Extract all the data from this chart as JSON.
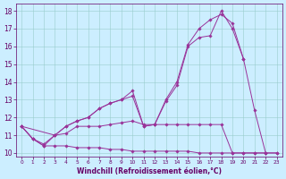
{
  "x": [
    0,
    1,
    2,
    3,
    4,
    5,
    6,
    7,
    8,
    9,
    10,
    11,
    12,
    13,
    14,
    15,
    16,
    17,
    18,
    19,
    20,
    21,
    22,
    23
  ],
  "line1": [
    11.5,
    10.8,
    10.4,
    10.4,
    10.4,
    10.3,
    10.3,
    10.3,
    10.2,
    10.2,
    10.1,
    10.1,
    10.1,
    10.1,
    10.1,
    10.1,
    10.0,
    10.0,
    10.0,
    10.0,
    10.0,
    10.0,
    10.0,
    10.0
  ],
  "line2": [
    11.5,
    10.8,
    10.4,
    11.0,
    11.1,
    11.5,
    11.5,
    11.5,
    11.6,
    11.7,
    11.8,
    11.6,
    11.6,
    11.6,
    11.6,
    11.6,
    11.6,
    11.6,
    11.6,
    10.0,
    10.0,
    10.0,
    10.0,
    10.0
  ],
  "line3": [
    11.5,
    10.8,
    10.5,
    11.0,
    11.5,
    11.8,
    12.0,
    12.5,
    12.8,
    13.0,
    13.2,
    11.5,
    11.6,
    12.9,
    13.8,
    16.0,
    16.5,
    16.6,
    18.0,
    17.0,
    15.3,
    12.4,
    10.0,
    null
  ],
  "line4": [
    11.5,
    null,
    null,
    11.0,
    11.5,
    11.8,
    12.0,
    12.5,
    12.8,
    13.0,
    13.5,
    11.5,
    11.6,
    13.0,
    14.0,
    16.1,
    17.0,
    17.5,
    17.8,
    17.3,
    15.3,
    null,
    null,
    null
  ],
  "background_color": "#cceeff",
  "line_color": "#993399",
  "grid_color": "#99cccc",
  "xlabel": "Windchill (Refroidissement éolien,°C)",
  "xlabel_color": "#660066",
  "tick_color": "#660066",
  "ylim": [
    9.8,
    18.4
  ],
  "xlim": [
    -0.5,
    23.5
  ],
  "yticks": [
    10,
    11,
    12,
    13,
    14,
    15,
    16,
    17,
    18
  ],
  "xticks": [
    0,
    1,
    2,
    3,
    4,
    5,
    6,
    7,
    8,
    9,
    10,
    11,
    12,
    13,
    14,
    15,
    16,
    17,
    18,
    19,
    20,
    21,
    22,
    23
  ],
  "figsize": [
    3.2,
    2.0
  ],
  "dpi": 100
}
